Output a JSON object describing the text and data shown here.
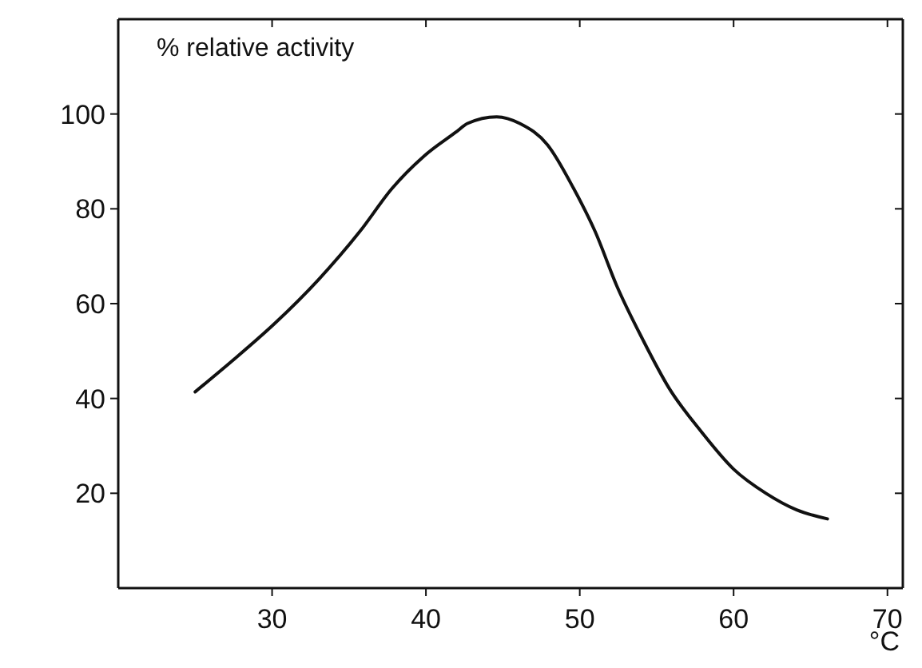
{
  "chart_data": {
    "type": "line",
    "ylabel": "% relative activity",
    "xlabel": "°C",
    "x": [
      25,
      27.4,
      30.2,
      33,
      35.7,
      37.8,
      39.9,
      42,
      42.7,
      44.6,
      46.1,
      47.9,
      49.6,
      51,
      52.4,
      54.1,
      55.8,
      57.9,
      60,
      62.1,
      64.1,
      66.1
    ],
    "series": [
      {
        "color": "#111111",
        "values": [
          41.4,
          47.9,
          55.9,
          65,
          75.2,
          84.3,
          91.2,
          96.3,
          98,
          99.4,
          98,
          93.5,
          84.3,
          75.2,
          63.8,
          52.4,
          42.2,
          33,
          25.1,
          20,
          16.5,
          14.6
        ]
      }
    ],
    "xlim": [
      20,
      71
    ],
    "xticks": [
      30,
      40,
      50,
      60,
      70
    ],
    "ylim": [
      0,
      120
    ],
    "yticks": [
      20,
      40,
      60,
      80,
      100
    ],
    "grid": false,
    "marker": "none",
    "line_style": "solid"
  }
}
